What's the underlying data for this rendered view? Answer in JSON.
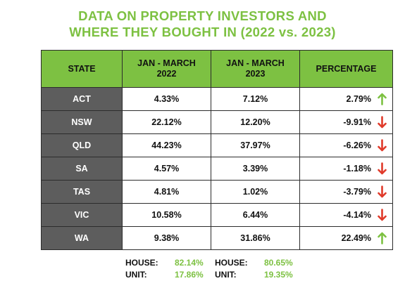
{
  "title": {
    "line1": "DATA ON PROPERTY INVESTORS AND",
    "line2": "WHERE THEY BOUGHT IN (2022 vs. 2023)"
  },
  "colors": {
    "accent_green": "#7dc142",
    "state_cell_gray": "#5d5d5d",
    "down_arrow_red": "#e03a2a",
    "up_arrow_green": "#7dc142"
  },
  "chart_data": {
    "type": "table",
    "columns": [
      {
        "line1": "STATE",
        "line2": ""
      },
      {
        "line1": "JAN - MARCH",
        "line2": "2022"
      },
      {
        "line1": "JAN - MARCH",
        "line2": "2023"
      },
      {
        "line1": "PERCENTAGE",
        "line2": ""
      }
    ],
    "rows": [
      {
        "state": "ACT",
        "y2022": "4.33%",
        "y2023": "7.12%",
        "change": "2.79%",
        "direction": "up"
      },
      {
        "state": "NSW",
        "y2022": "22.12%",
        "y2023": "12.20%",
        "change": "-9.91%",
        "direction": "down"
      },
      {
        "state": "QLD",
        "y2022": "44.23%",
        "y2023": "37.97%",
        "change": "-6.26%",
        "direction": "down"
      },
      {
        "state": "SA",
        "y2022": "4.57%",
        "y2023": "3.39%",
        "change": "-1.18%",
        "direction": "down"
      },
      {
        "state": "TAS",
        "y2022": "4.81%",
        "y2023": "1.02%",
        "change": "-3.79%",
        "direction": "down"
      },
      {
        "state": "VIC",
        "y2022": "10.58%",
        "y2023": "6.44%",
        "change": "-4.14%",
        "direction": "down"
      },
      {
        "state": "WA",
        "y2022": "9.38%",
        "y2023": "31.86%",
        "change": "22.49%",
        "direction": "up"
      }
    ]
  },
  "summary": {
    "y2022": {
      "house_label": "HOUSE:",
      "house_value": "82.14%",
      "unit_label": "UNIT:",
      "unit_value": "17.86%"
    },
    "y2023": {
      "house_label": "HOUSE:",
      "house_value": "80.65%",
      "unit_label": "UNIT:",
      "unit_value": "19.35%"
    }
  }
}
